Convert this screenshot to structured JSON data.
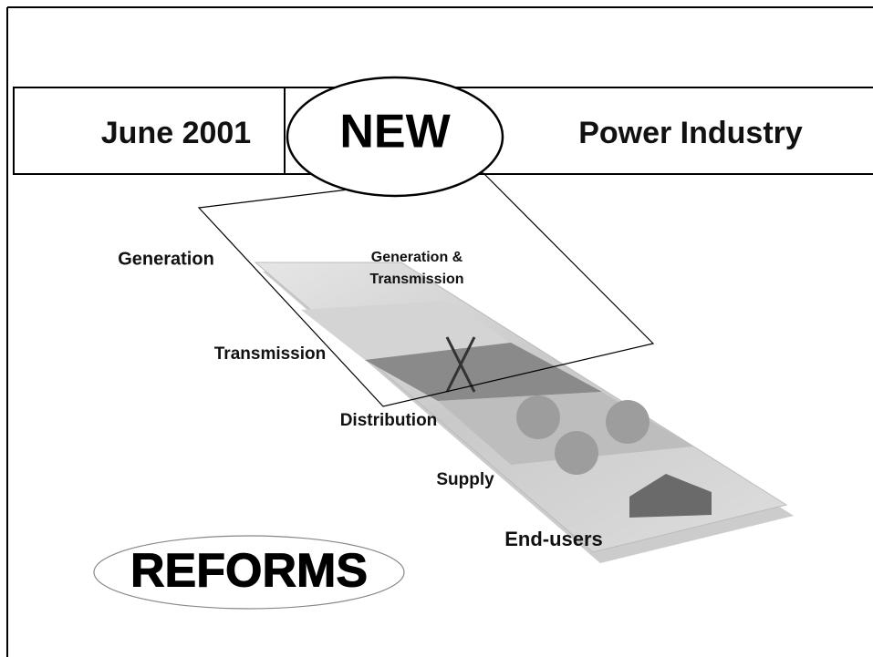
{
  "header": {
    "date": "June 2001",
    "highlight": "NEW",
    "subject": "Power Industry"
  },
  "diagram": {
    "overlay_label": [
      "Generation &",
      "Transmission"
    ],
    "layers": [
      "Generation",
      "Transmission",
      "Distribution",
      "Supply",
      "End-users"
    ]
  },
  "footer": {
    "title": "REFORMS"
  }
}
